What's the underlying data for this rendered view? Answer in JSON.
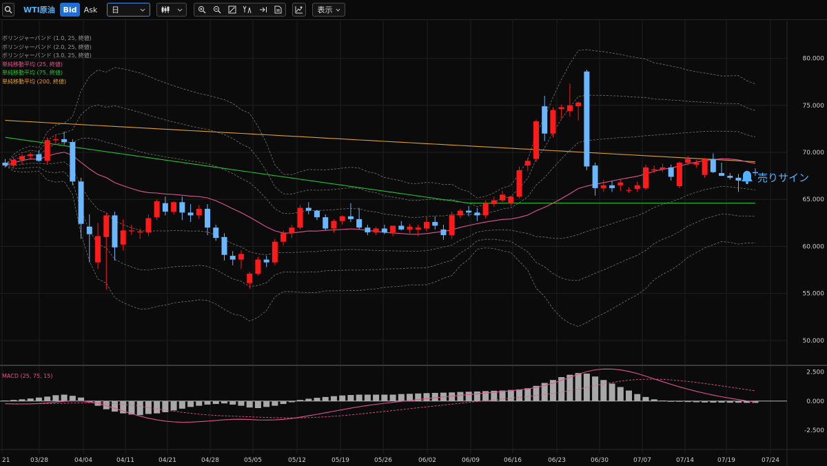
{
  "toolbar": {
    "symbol": "WTI原油",
    "bid_label": "Bid",
    "ask_label": "Ask",
    "timeframe": "日",
    "display_label": "表示"
  },
  "legend": [
    {
      "label": "ボリンジャーバンド (1.0, 25, 終値)",
      "color": "#9a9a9a"
    },
    {
      "label": "ボリンジャーバンド (2.0, 25, 終値)",
      "color": "#9a9a9a"
    },
    {
      "label": "ボリンジャーバンド (3.0, 25, 終値)",
      "color": "#9a9a9a"
    },
    {
      "label": "単純移動平均 (25, 終値)",
      "color": "#e0558e"
    },
    {
      "label": "単純移動平均 (75, 終値)",
      "color": "#22c32e"
    },
    {
      "label": "単純移動平均 (200, 終値)",
      "color": "#e0a030"
    }
  ],
  "sell_sign_label": "売りサイン",
  "macd_label": "MACD (25, 75, 15)",
  "colors": {
    "up": "#ff1a1a",
    "down": "#6ab7ff",
    "accent": "#4fb3ff"
  },
  "chart_data": {
    "type": "candlestick",
    "price_axis_ticks": [
      "80.000",
      "75.000",
      "70.000",
      "65.000",
      "60.000",
      "55.000",
      "50.000"
    ],
    "price_axis_values": [
      80,
      75,
      70,
      65,
      60,
      55,
      50
    ],
    "ylim": [
      47.5,
      84
    ],
    "date_ticks": [
      "21",
      "03/28",
      "04/04",
      "04/11",
      "04/21",
      "04/28",
      "05/05",
      "05/12",
      "05/19",
      "05/26",
      "06/02",
      "06/09",
      "06/16",
      "06/23",
      "06/30",
      "07/07",
      "07/14",
      "07/19",
      "07/24"
    ],
    "candles": [
      [
        68.9,
        69.3,
        68.4,
        68.6
      ],
      [
        68.6,
        69.4,
        68.3,
        69.2
      ],
      [
        69.2,
        69.8,
        68.7,
        69.6
      ],
      [
        69.6,
        70.0,
        69.2,
        69.8
      ],
      [
        69.8,
        70.2,
        69.0,
        69.1
      ],
      [
        69.1,
        71.6,
        68.8,
        71.3
      ],
      [
        71.3,
        71.9,
        70.9,
        71.4
      ],
      [
        71.4,
        72.2,
        70.8,
        71.1
      ],
      [
        71.1,
        71.4,
        66.5,
        66.9
      ],
      [
        66.9,
        67.3,
        60.8,
        62.4
      ],
      [
        62.1,
        63.4,
        58.3,
        61.3
      ],
      [
        58.3,
        62.5,
        57.6,
        61.1
      ],
      [
        61.0,
        63.6,
        55.4,
        63.3
      ],
      [
        63.3,
        63.7,
        58.5,
        59.9
      ],
      [
        60.2,
        62.9,
        59.6,
        61.7
      ],
      [
        61.6,
        62.3,
        61.2,
        61.7
      ],
      [
        61.5,
        61.9,
        60.8,
        61.6
      ],
      [
        61.5,
        63.4,
        61.1,
        63.0
      ],
      [
        63.1,
        65.0,
        62.8,
        64.8
      ],
      [
        64.6,
        65.3,
        63.3,
        63.7
      ],
      [
        63.7,
        64.8,
        63.4,
        64.7
      ],
      [
        64.7,
        65.3,
        62.8,
        63.6
      ],
      [
        63.6,
        64.5,
        62.6,
        63.3
      ],
      [
        63.3,
        64.4,
        62.9,
        64.0
      ],
      [
        64.0,
        64.5,
        61.2,
        62.0
      ],
      [
        62.0,
        62.3,
        60.6,
        60.9
      ],
      [
        61.0,
        61.4,
        58.5,
        59.1
      ],
      [
        59.0,
        59.5,
        58.0,
        58.6
      ],
      [
        58.6,
        59.6,
        57.6,
        59.2
      ],
      [
        56.1,
        57.3,
        55.5,
        57.1
      ],
      [
        57.1,
        58.9,
        56.9,
        58.6
      ],
      [
        58.6,
        59.0,
        57.8,
        58.3
      ],
      [
        58.3,
        60.8,
        58.0,
        60.5
      ],
      [
        60.5,
        61.7,
        60.1,
        61.4
      ],
      [
        61.4,
        62.3,
        60.9,
        62.0
      ],
      [
        62.0,
        64.4,
        61.8,
        64.1
      ],
      [
        64.1,
        64.7,
        63.4,
        63.8
      ],
      [
        63.8,
        63.9,
        62.8,
        63.1
      ],
      [
        63.1,
        63.4,
        61.7,
        61.9
      ],
      [
        61.9,
        62.9,
        61.5,
        62.7
      ],
      [
        62.7,
        63.3,
        62.3,
        63.2
      ],
      [
        63.2,
        64.6,
        62.6,
        62.9
      ],
      [
        62.9,
        64.1,
        61.8,
        62.0
      ],
      [
        62.0,
        62.3,
        61.2,
        61.5
      ],
      [
        61.5,
        62.1,
        61.2,
        61.9
      ],
      [
        61.9,
        62.3,
        61.3,
        61.5
      ],
      [
        61.5,
        62.1,
        61.1,
        62.2
      ],
      [
        62.2,
        62.7,
        61.7,
        61.8
      ],
      [
        61.8,
        62.4,
        61.4,
        62.1
      ],
      [
        61.8,
        62.3,
        61.1,
        62.0
      ],
      [
        61.9,
        63.1,
        61.6,
        62.6
      ],
      [
        62.6,
        63.2,
        61.8,
        62.2
      ],
      [
        61.8,
        62.3,
        60.7,
        61.2
      ],
      [
        61.2,
        63.7,
        60.8,
        63.3
      ],
      [
        63.3,
        64.0,
        63.0,
        63.8
      ],
      [
        63.8,
        64.3,
        63.2,
        63.6
      ],
      [
        63.6,
        64.1,
        62.7,
        63.3
      ],
      [
        63.3,
        64.9,
        63.0,
        64.6
      ],
      [
        64.5,
        65.3,
        64.2,
        64.9
      ],
      [
        64.9,
        65.9,
        64.7,
        65.5
      ],
      [
        64.6,
        65.4,
        64.3,
        65.3
      ],
      [
        65.3,
        68.5,
        65.1,
        68.1
      ],
      [
        68.6,
        69.4,
        68.0,
        69.1
      ],
      [
        69.3,
        73.5,
        69.0,
        73.3
      ],
      [
        74.9,
        76.0,
        71.2,
        72.0
      ],
      [
        72.0,
        74.8,
        71.6,
        74.5
      ],
      [
        74.6,
        75.1,
        73.6,
        74.8
      ],
      [
        74.4,
        77.3,
        73.8,
        75.0
      ],
      [
        74.9,
        75.4,
        73.4,
        75.3
      ],
      [
        78.6,
        78.8,
        68.1,
        68.5
      ],
      [
        68.6,
        68.9,
        65.4,
        66.2
      ],
      [
        66.2,
        67.1,
        65.8,
        66.5
      ],
      [
        66.5,
        67.0,
        65.8,
        66.2
      ],
      [
        66.5,
        67.1,
        65.9,
        66.8
      ],
      [
        66.0,
        66.3,
        65.7,
        66.0
      ],
      [
        66.1,
        66.9,
        65.8,
        66.5
      ],
      [
        66.2,
        68.7,
        66.0,
        68.4
      ],
      [
        68.1,
        68.6,
        67.8,
        68.2
      ],
      [
        68.2,
        68.8,
        67.9,
        68.4
      ],
      [
        68.4,
        68.7,
        67.0,
        67.4
      ],
      [
        66.4,
        69.0,
        66.2,
        68.9
      ],
      [
        68.9,
        69.6,
        68.6,
        69.3
      ],
      [
        68.7,
        69.2,
        68.4,
        68.9
      ],
      [
        67.6,
        69.4,
        67.3,
        69.3
      ],
      [
        69.3,
        69.9,
        67.8,
        67.9
      ],
      [
        67.8,
        68.9,
        67.7,
        67.5
      ],
      [
        67.5,
        67.8,
        67.1,
        67.3
      ],
      [
        67.3,
        67.7,
        65.8,
        67.0
      ],
      [
        66.9,
        68.1,
        66.7,
        67.9
      ],
      [
        67.9,
        68.3,
        67.5,
        67.8
      ]
    ],
    "macd_axis_ticks": [
      "2.500",
      "0.000",
      "-2.500"
    ],
    "macd_axis_values": [
      2.5,
      0,
      -2.5
    ],
    "macd_ylim": [
      -3.9,
      2.7
    ],
    "macd_histogram": [
      0.05,
      0.1,
      0.15,
      0.22,
      0.3,
      0.38,
      0.5,
      0.55,
      0.45,
      0.3,
      -0.1,
      -0.4,
      -0.7,
      -0.9,
      -1.05,
      -1.15,
      -1.2,
      -1.1,
      -1.05,
      -0.95,
      -0.8,
      -0.65,
      -0.5,
      -0.4,
      -0.3,
      -0.25,
      -0.2,
      -0.3,
      -0.4,
      -0.55,
      -0.6,
      -0.5,
      -0.4,
      -0.25,
      -0.1,
      0.1,
      0.2,
      0.28,
      0.35,
      0.42,
      0.48,
      0.52,
      0.55,
      0.55,
      0.55,
      0.55,
      0.55,
      0.6,
      0.62,
      0.65,
      0.68,
      0.7,
      0.72,
      0.74,
      0.78,
      0.8,
      0.82,
      0.85,
      0.88,
      0.9,
      0.95,
      1.0,
      1.1,
      1.3,
      1.55,
      1.8,
      2.05,
      2.25,
      2.4,
      2.35,
      2.1,
      1.8,
      1.5,
      1.2,
      0.9,
      0.6,
      0.35,
      0.15,
      0.05,
      0.0,
      -0.05,
      -0.08,
      -0.1,
      -0.12,
      -0.13,
      -0.13,
      -0.14,
      -0.14,
      -0.15,
      -0.15
    ]
  }
}
